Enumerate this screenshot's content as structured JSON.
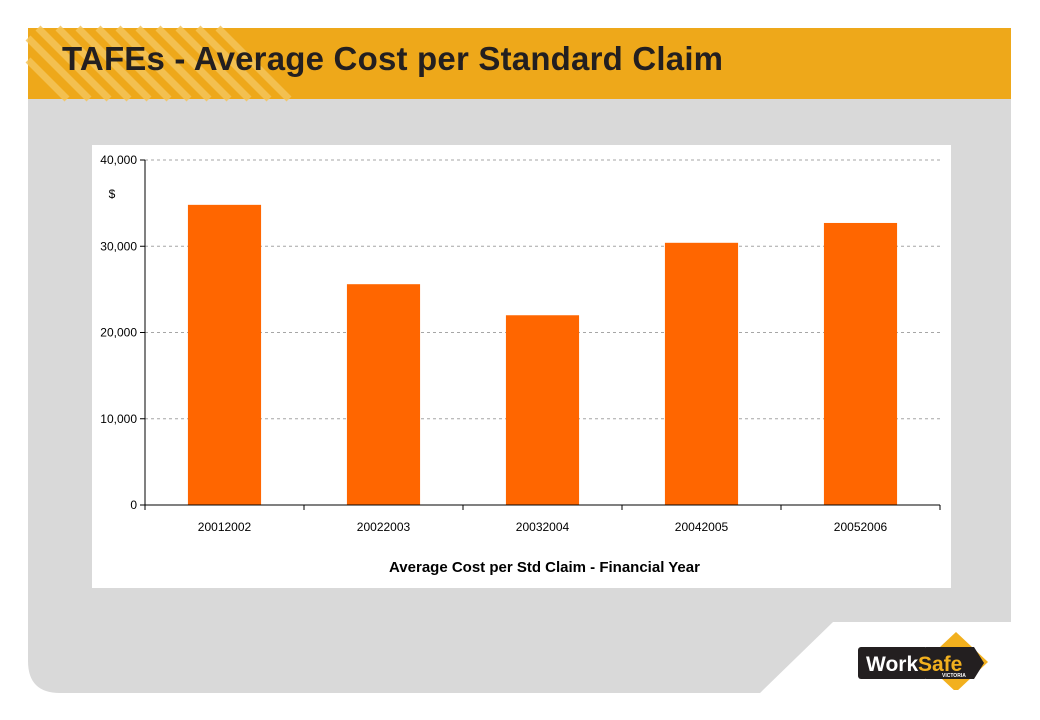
{
  "slide": {
    "title": "TAFEs - Average Cost per Standard Claim",
    "colors": {
      "banner": "#eea81a",
      "panel": "#d9d9d9",
      "bar": "#ff6600"
    }
  },
  "chart_data": {
    "type": "bar",
    "categories": [
      "20012002",
      "20022003",
      "20032004",
      "20042005",
      "20052006"
    ],
    "values": [
      34800,
      25600,
      22000,
      30400,
      32700
    ],
    "xlabel": "Average Cost per Std Claim - Financial Year",
    "ylabel": "$",
    "ylim": [
      0,
      40000
    ],
    "yticks": [
      0,
      10000,
      20000,
      30000,
      40000
    ],
    "ytick_labels": [
      "0",
      "10,000",
      "20,000",
      "30,000",
      "40,000"
    ],
    "grid": true,
    "legend": "none",
    "bar_color": "#ff6600"
  },
  "logo": {
    "word1": "Work",
    "word2": "Safe",
    "tagline": "VICTORIA",
    "icon": "worksafe-logo-icon"
  }
}
